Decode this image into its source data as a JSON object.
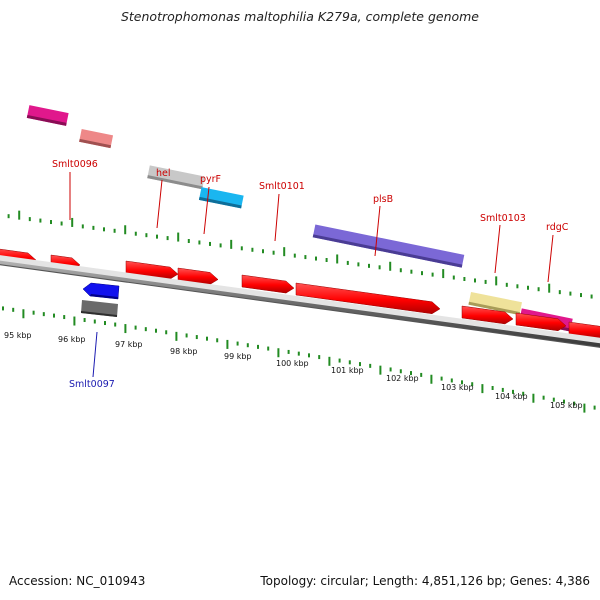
{
  "title": "Stenotrophomonas maltophilia K279a, complete genome",
  "footer": {
    "accession": "Accession: NC_010943",
    "summary": "Topology: circular; Length: 4,851,126 bp; Genes: 4,386"
  },
  "colors": {
    "cds_red": "#ff0000",
    "tick_green": "#228b22",
    "label_red": "#cc0000",
    "label_blue": "#1a1ab0",
    "backbone": "#666666"
  },
  "ruler": {
    "unit": "kbp",
    "labels": [
      {
        "kbp": 95,
        "text": "95 kbp"
      },
      {
        "kbp": 96,
        "text": "96 kbp"
      },
      {
        "kbp": 97,
        "text": "97 kbp"
      },
      {
        "kbp": 98,
        "text": "98 kbp"
      },
      {
        "kbp": 99,
        "text": "99 kbp"
      },
      {
        "kbp": 100,
        "text": "100 kbp"
      },
      {
        "kbp": 101,
        "text": "101 kbp"
      },
      {
        "kbp": 102,
        "text": "102 kbp"
      },
      {
        "kbp": 103,
        "text": "103 kbp"
      },
      {
        "kbp": 104,
        "text": "104 kbp"
      },
      {
        "kbp": 105,
        "text": "105 kbp"
      }
    ]
  },
  "gene_labels": [
    {
      "name": "Smlt0096",
      "strand": "forward",
      "color": "#cc0000"
    },
    {
      "name": "hel",
      "strand": "forward",
      "color": "#cc0000"
    },
    {
      "name": "pyrF",
      "strand": "forward",
      "color": "#cc0000"
    },
    {
      "name": "Smlt0101",
      "strand": "forward",
      "color": "#cc0000"
    },
    {
      "name": "plsB",
      "strand": "forward",
      "color": "#cc0000"
    },
    {
      "name": "Smlt0103",
      "strand": "forward",
      "color": "#cc0000"
    },
    {
      "name": "rdgC",
      "strand": "forward",
      "color": "#cc0000"
    },
    {
      "name": "Smlt0097",
      "strand": "reverse",
      "color": "#1a1ab0"
    }
  ]
}
